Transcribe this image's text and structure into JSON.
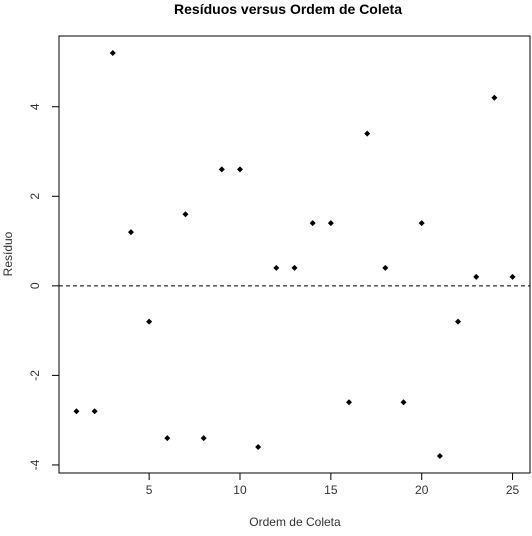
{
  "chart_data": {
    "type": "scatter",
    "title": "Resíduos versus Ordem de Coleta",
    "xlabel": "Ordem de Coleta",
    "ylabel": "Resíduo",
    "xlim": [
      0.04,
      25.96
    ],
    "ylim": [
      -4.18,
      5.58
    ],
    "x_ticks": [
      5,
      10,
      15,
      20,
      25
    ],
    "y_ticks": [
      -4,
      -2,
      0,
      2,
      4
    ],
    "x_tick_labels": [
      "5",
      "10",
      "15",
      "20",
      "25"
    ],
    "y_tick_labels": [
      "-4",
      "-2",
      "0",
      "2",
      "4"
    ],
    "reference_line": {
      "y": 0,
      "style": "dashed"
    },
    "grid": false,
    "point_marker": "diamond",
    "point_color": "#000000",
    "x": [
      1,
      2,
      3,
      4,
      5,
      6,
      7,
      8,
      9,
      10,
      11,
      12,
      13,
      14,
      15,
      16,
      17,
      18,
      19,
      20,
      21,
      22,
      23,
      24,
      25
    ],
    "y": [
      -2.8,
      -2.8,
      5.2,
      1.2,
      -0.8,
      -3.4,
      1.6,
      -3.4,
      2.6,
      2.6,
      -3.6,
      0.4,
      0.4,
      1.4,
      1.4,
      -2.6,
      3.4,
      0.4,
      -2.6,
      1.4,
      -3.8,
      -0.8,
      0.2,
      4.2,
      0.2
    ]
  }
}
